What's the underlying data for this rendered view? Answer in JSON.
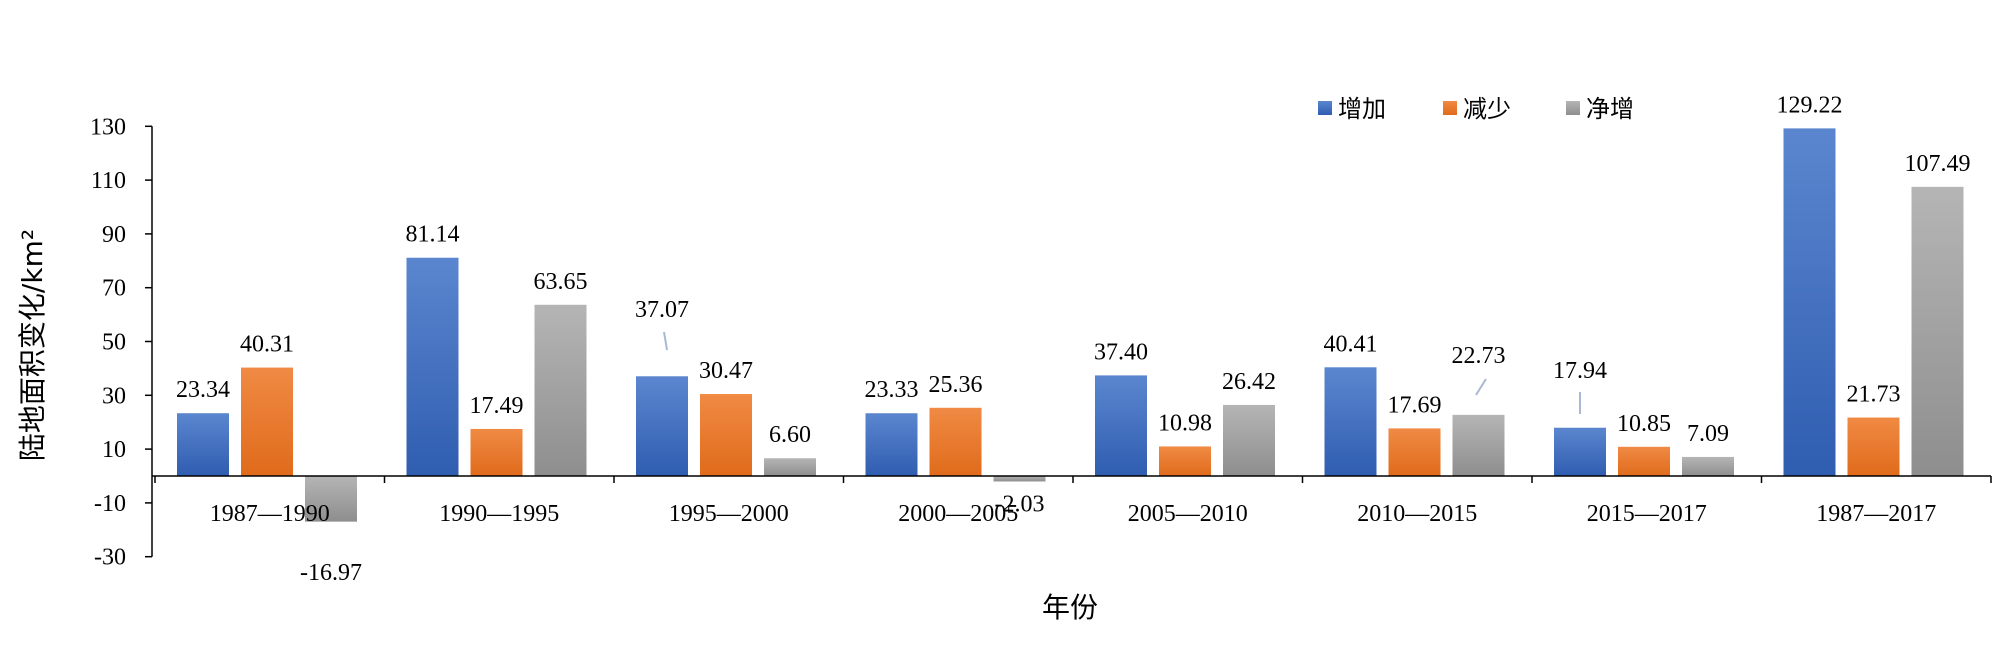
{
  "chart_data": {
    "type": "bar",
    "title": "",
    "xlabel": "年份",
    "ylabel": "陆地面积变化/km²",
    "ylim": [
      -30,
      130
    ],
    "yticks": [
      -30,
      -10,
      10,
      30,
      50,
      70,
      90,
      110,
      130
    ],
    "grid": false,
    "legend_position": "top-right",
    "categories": [
      "1987—1990",
      "1990—1995",
      "1995—2000",
      "2000—2005",
      "2005—2010",
      "2010—2015",
      "2015—2017",
      "1987—2017"
    ],
    "series": [
      {
        "name": "增加",
        "color": "#4472C4",
        "values": [
          23.34,
          81.14,
          37.07,
          23.33,
          37.4,
          40.41,
          17.94,
          129.22
        ],
        "labels": [
          "23.34",
          "81.14",
          "37.07",
          "23.33",
          "37.40",
          "40.41",
          "17.94",
          "129.22"
        ]
      },
      {
        "name": "减少",
        "color": "#ED7D31",
        "values": [
          40.31,
          17.49,
          30.47,
          25.36,
          10.98,
          17.69,
          10.85,
          21.73
        ],
        "labels": [
          "40.31",
          "17.49",
          "30.47",
          "25.36",
          "10.98",
          "17.69",
          "10.85",
          "21.73"
        ]
      },
      {
        "name": "净增",
        "color": "#A5A5A5",
        "values": [
          -16.97,
          63.65,
          6.6,
          -2.03,
          26.42,
          22.73,
          7.09,
          107.49
        ],
        "labels": [
          "-16.97",
          "63.65",
          "6.60",
          "-2.03",
          "26.42",
          "22.73",
          "7.09",
          "107.49"
        ]
      }
    ]
  }
}
